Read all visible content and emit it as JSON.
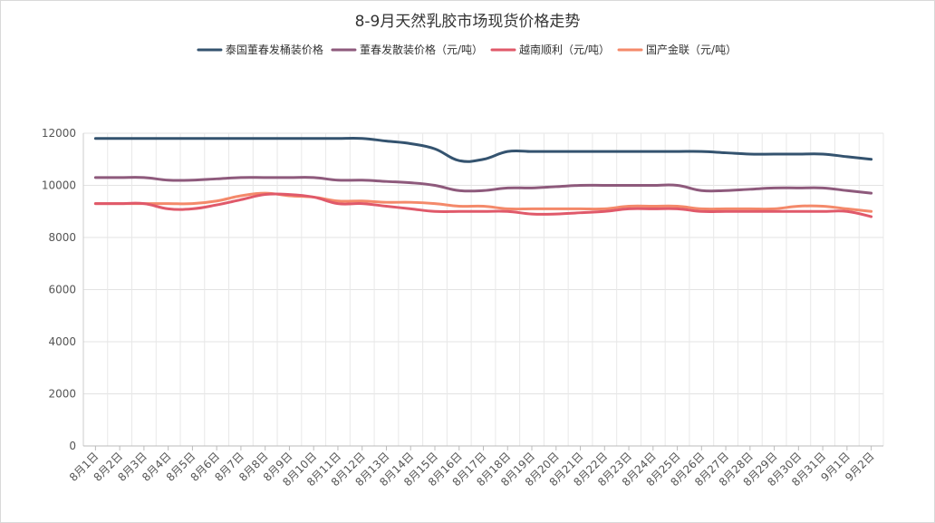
{
  "chart_data": {
    "type": "line",
    "title": "8-9月天然乳胶市场现货价格走势",
    "categories": [
      "8月1日",
      "8月2日",
      "8月3日",
      "8月4日",
      "8月5日",
      "8月6日",
      "8月7日",
      "8月8日",
      "8月9日",
      "8月10日",
      "8月11日",
      "8月12日",
      "8月13日",
      "8月14日",
      "8月15日",
      "8月16日",
      "8月17日",
      "8月18日",
      "8月19日",
      "8月20日",
      "8月21日",
      "8月22日",
      "8月23日",
      "8月24日",
      "8月25日",
      "8月26日",
      "8月27日",
      "8月28日",
      "8月29日",
      "8月30日",
      "8月31日",
      "9月1日",
      "9月2日"
    ],
    "ylim": [
      0,
      12000
    ],
    "yticks": [
      0,
      2000,
      4000,
      6000,
      8000,
      10000,
      12000
    ],
    "grid": true,
    "legend_position": "top",
    "series": [
      {
        "name": "泰国董春发桶装价格",
        "color": "#34536f",
        "values": [
          11800,
          11800,
          11800,
          11800,
          11800,
          11800,
          11800,
          11800,
          11800,
          11800,
          11800,
          11800,
          11700,
          11600,
          11400,
          10950,
          11000,
          11300,
          11300,
          11300,
          11300,
          11300,
          11300,
          11300,
          11300,
          11300,
          11250,
          11200,
          11200,
          11200,
          11200,
          11100,
          11000
        ]
      },
      {
        "name": "董春发散装价格（元/吨）",
        "color": "#8e5a7c",
        "values": [
          10300,
          10300,
          10300,
          10200,
          10200,
          10250,
          10300,
          10300,
          10300,
          10300,
          10200,
          10200,
          10150,
          10100,
          10000,
          9800,
          9800,
          9900,
          9900,
          9950,
          10000,
          10000,
          10000,
          10000,
          10000,
          9800,
          9800,
          9850,
          9900,
          9900,
          9900,
          9800,
          9700
        ]
      },
      {
        "name": "越南顺利（元/吨）",
        "color": "#e0596a",
        "values": [
          9300,
          9300,
          9300,
          9100,
          9100,
          9250,
          9450,
          9650,
          9650,
          9550,
          9300,
          9300,
          9200,
          9100,
          9000,
          9000,
          9000,
          9000,
          8900,
          8900,
          8950,
          9000,
          9100,
          9100,
          9100,
          9000,
          9000,
          9000,
          9000,
          9000,
          9000,
          9000,
          8800
        ]
      },
      {
        "name": "国产金联（元/吨）",
        "color": "#f4896a",
        "values": [
          9300,
          9300,
          9300,
          9300,
          9300,
          9400,
          9600,
          9700,
          9600,
          9550,
          9400,
          9400,
          9350,
          9350,
          9300,
          9200,
          9200,
          9100,
          9100,
          9100,
          9100,
          9100,
          9200,
          9200,
          9200,
          9100,
          9100,
          9100,
          9100,
          9200,
          9200,
          9100,
          9000
        ]
      }
    ]
  }
}
